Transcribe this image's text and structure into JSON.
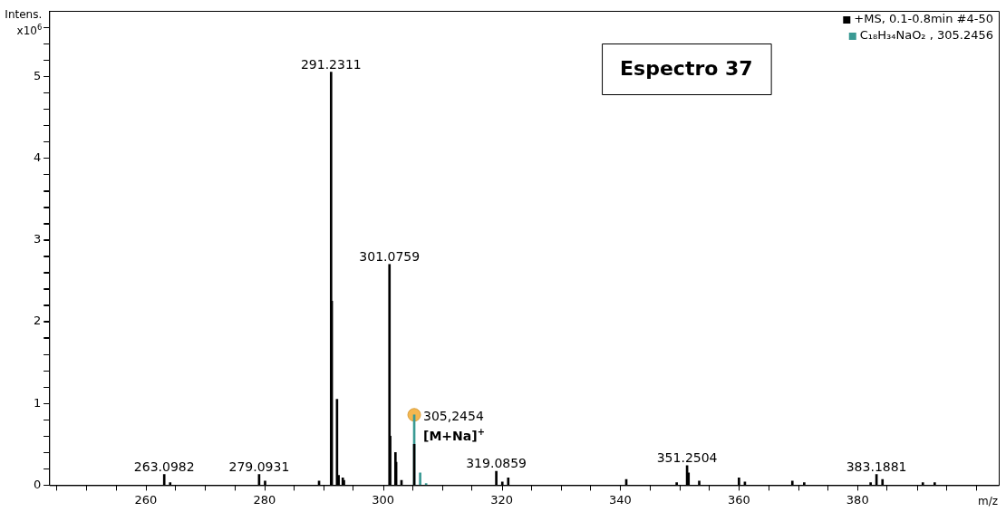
{
  "chart_data": {
    "type": "bar",
    "title": "Espectro 37",
    "xlabel": "m/z",
    "ylabel": "Intens. x10$^{6}$",
    "xlim": [
      243.7,
      403.8
    ],
    "xticks": [
      {
        "value": 250,
        "label": null
      },
      260,
      {
        "value": 270,
        "label": null
      },
      280,
      {
        "value": 290,
        "label": null
      },
      300,
      {
        "value": 310,
        "label": null
      },
      320,
      {
        "value": 330,
        "label": null
      },
      340,
      {
        "value": 350,
        "label": null
      },
      360,
      {
        "value": 370,
        "label": null
      },
      380,
      {
        "value": 390,
        "label": null
      },
      {
        "value": 400,
        "label": null
      }
    ],
    "ylim": [
      0,
      5.8
    ],
    "yticks": [
      0,
      {
        "value": 0.2,
        "label": null
      },
      {
        "value": 0.4,
        "label": null
      },
      {
        "value": 0.6,
        "label": null
      },
      {
        "value": 0.8,
        "label": null
      },
      1,
      {
        "value": 1.2,
        "label": null
      },
      {
        "value": 1.4,
        "label": null
      },
      {
        "value": 1.6,
        "label": null
      },
      {
        "value": 1.8,
        "label": null
      },
      2,
      {
        "value": 2.2,
        "label": null
      },
      {
        "value": 2.4,
        "label": null
      },
      {
        "value": 2.6,
        "label": null
      },
      {
        "value": 2.8,
        "label": null
      },
      3,
      {
        "value": 3.2,
        "label": null
      },
      {
        "value": 3.4,
        "label": null
      },
      {
        "value": 3.6,
        "label": null
      },
      {
        "value": 3.8,
        "label": null
      },
      4,
      {
        "value": 4.2,
        "label": null
      },
      {
        "value": 4.4,
        "label": null
      },
      {
        "value": 4.6,
        "label": null
      },
      {
        "value": 4.8,
        "label": null
      },
      5,
      {
        "value": 5.2,
        "label": null
      },
      {
        "value": 5.4,
        "label": null
      },
      {
        "value": 5.6,
        "label": null
      }
    ],
    "legend": "top right",
    "grid": false,
    "series": [
      {
        "name": "+MS, 0.1-0.8min #4-50",
        "color": "#000000",
        "x": [
          263.0982,
          264.1,
          279.0931,
          280.1,
          289.2,
          291.2311,
          291.35,
          292.23,
          292.5,
          293.2,
          293.4,
          301.0759,
          301.2,
          302.08,
          302.2,
          303.1,
          305.2454,
          319.0859,
          320.1,
          321.1,
          341.0,
          349.5,
          351.2504,
          351.5,
          353.3,
          360.0,
          361.0,
          369.0,
          371.0,
          382.2,
          383.1881,
          384.2,
          391.0,
          393.0
        ],
        "values": [
          0.13,
          0.03,
          0.13,
          0.05,
          0.05,
          5.05,
          2.25,
          1.05,
          0.12,
          0.09,
          0.06,
          2.7,
          0.6,
          0.4,
          0.28,
          0.06,
          0.5,
          0.17,
          0.04,
          0.09,
          0.07,
          0.03,
          0.24,
          0.15,
          0.05,
          0.09,
          0.04,
          0.05,
          0.03,
          0.03,
          0.13,
          0.07,
          0.03,
          0.03
        ]
      },
      {
        "name": "C₁₈H₃₄NaO₂ , 305.2456",
        "color": "#3a9a94",
        "x": [
          305.2456,
          306.25,
          307.25
        ],
        "values": [
          0.86,
          0.15,
          0.02
        ]
      },
      {
        "type": "scatter",
        "color": "#f5b74f",
        "marker": "circle",
        "x": [
          305.2456
        ],
        "values": [
          0.86
        ]
      }
    ],
    "annotations": [
      {
        "text": "263.0982",
        "x": 263.0982,
        "y": 0.13
      },
      {
        "text": "279.0931",
        "x": 279.0931,
        "y": 0.13
      },
      {
        "text": "291.2311",
        "x": 291.2311,
        "y": 5.05
      },
      {
        "text": "301.0759",
        "x": 301.0759,
        "y": 2.7
      },
      {
        "text": "319.0859",
        "x": 319.0859,
        "y": 0.17
      },
      {
        "text": "351.2504",
        "x": 351.2504,
        "y": 0.24
      },
      {
        "text": "383.1881",
        "x": 383.1881,
        "y": 0.13
      },
      {
        "text": "305,2454",
        "x": 305.2456,
        "y": 0.86
      },
      {
        "text": "[M+Na]$^{+}$",
        "x": 305.2456,
        "y": 0.86
      }
    ]
  }
}
